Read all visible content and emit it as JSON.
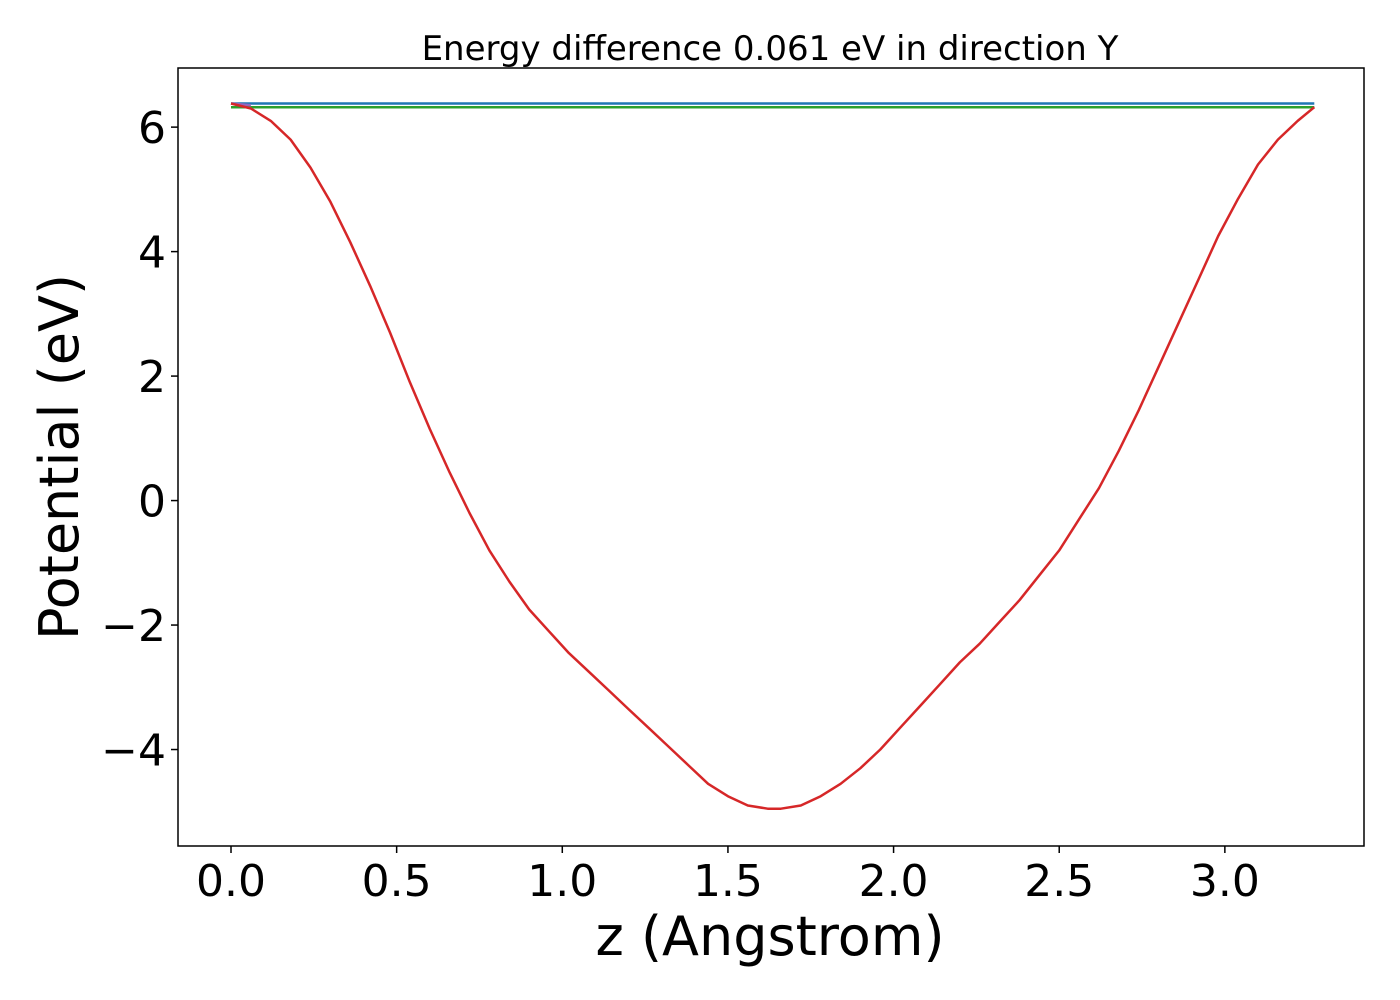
{
  "chart_data": {
    "type": "line",
    "title": "Energy difference 0.061 eV in direction Y",
    "xlabel": "z (Angstrom)",
    "ylabel": "Potential (eV)",
    "xlim": [
      -0.16,
      3.42
    ],
    "ylim": [
      -5.55,
      6.95
    ],
    "xticks": [
      0.0,
      0.5,
      1.0,
      1.5,
      2.0,
      2.5,
      3.0
    ],
    "xtick_labels": [
      "0.0",
      "0.5",
      "1.0",
      "1.5",
      "2.0",
      "2.5",
      "3.0"
    ],
    "yticks": [
      -4,
      -2,
      0,
      2,
      4,
      6
    ],
    "ytick_labels": [
      "−4",
      "−2",
      "0",
      "2",
      "4",
      "6"
    ],
    "grid": false,
    "series": [
      {
        "color": "#1f77b4",
        "x": [
          0.0,
          3.27
        ],
        "y": [
          6.38,
          6.38
        ]
      },
      {
        "color": "#2ca02c",
        "x": [
          0.0,
          3.27
        ],
        "y": [
          6.32,
          6.32
        ]
      },
      {
        "color": "#9467bd",
        "x": [
          0.0,
          0.06
        ],
        "y": [
          6.38,
          6.35
        ]
      },
      {
        "color": "#d62728",
        "x": [
          0.0,
          0.06,
          0.12,
          0.18,
          0.24,
          0.3,
          0.36,
          0.42,
          0.48,
          0.54,
          0.6,
          0.66,
          0.72,
          0.78,
          0.84,
          0.9,
          0.96,
          1.02,
          1.08,
          1.14,
          1.2,
          1.26,
          1.32,
          1.38,
          1.44,
          1.5,
          1.56,
          1.62,
          1.66,
          1.72,
          1.78,
          1.84,
          1.9,
          1.96,
          2.02,
          2.08,
          2.14,
          2.2,
          2.26,
          2.32,
          2.38,
          2.44,
          2.5,
          2.56,
          2.62,
          2.68,
          2.74,
          2.8,
          2.86,
          2.92,
          2.98,
          3.04,
          3.1,
          3.16,
          3.22,
          3.27
        ],
        "y": [
          6.38,
          6.3,
          6.1,
          5.8,
          5.35,
          4.8,
          4.15,
          3.45,
          2.7,
          1.9,
          1.15,
          0.45,
          -0.2,
          -0.8,
          -1.3,
          -1.75,
          -2.1,
          -2.45,
          -2.75,
          -3.05,
          -3.35,
          -3.65,
          -3.95,
          -4.25,
          -4.55,
          -4.75,
          -4.9,
          -4.95,
          -4.95,
          -4.9,
          -4.75,
          -4.55,
          -4.3,
          -4.0,
          -3.65,
          -3.3,
          -2.95,
          -2.6,
          -2.3,
          -1.95,
          -1.6,
          -1.2,
          -0.8,
          -0.3,
          0.2,
          0.8,
          1.45,
          2.15,
          2.85,
          3.55,
          4.25,
          4.85,
          5.4,
          5.8,
          6.1,
          6.32
        ]
      }
    ]
  }
}
